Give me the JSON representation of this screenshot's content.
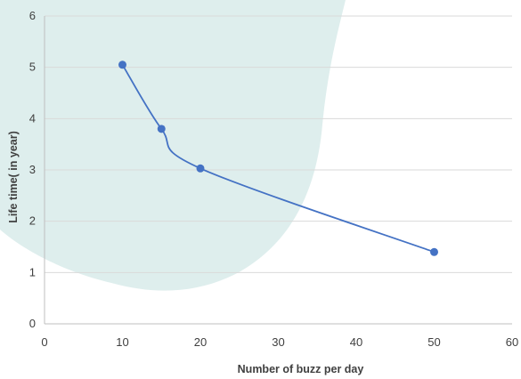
{
  "chart_data": {
    "type": "scatter",
    "title": "",
    "xlabel": "Number of buzz per day",
    "ylabel": "Life time( in year)",
    "xlim": [
      0,
      60
    ],
    "ylim": [
      0,
      6
    ],
    "x_ticks": [
      "0",
      "10",
      "20",
      "30",
      "40",
      "50",
      "60"
    ],
    "y_ticks": [
      "0",
      "1",
      "2",
      "3",
      "4",
      "5",
      "6"
    ],
    "grid": "horizontal",
    "smooth_line": true,
    "series": [
      {
        "color": "#4472C4",
        "x": [
          10,
          15,
          20,
          50
        ],
        "y": [
          5.05,
          3.8,
          3.03,
          1.4
        ]
      }
    ],
    "background_blob_color": "#deeeed"
  }
}
